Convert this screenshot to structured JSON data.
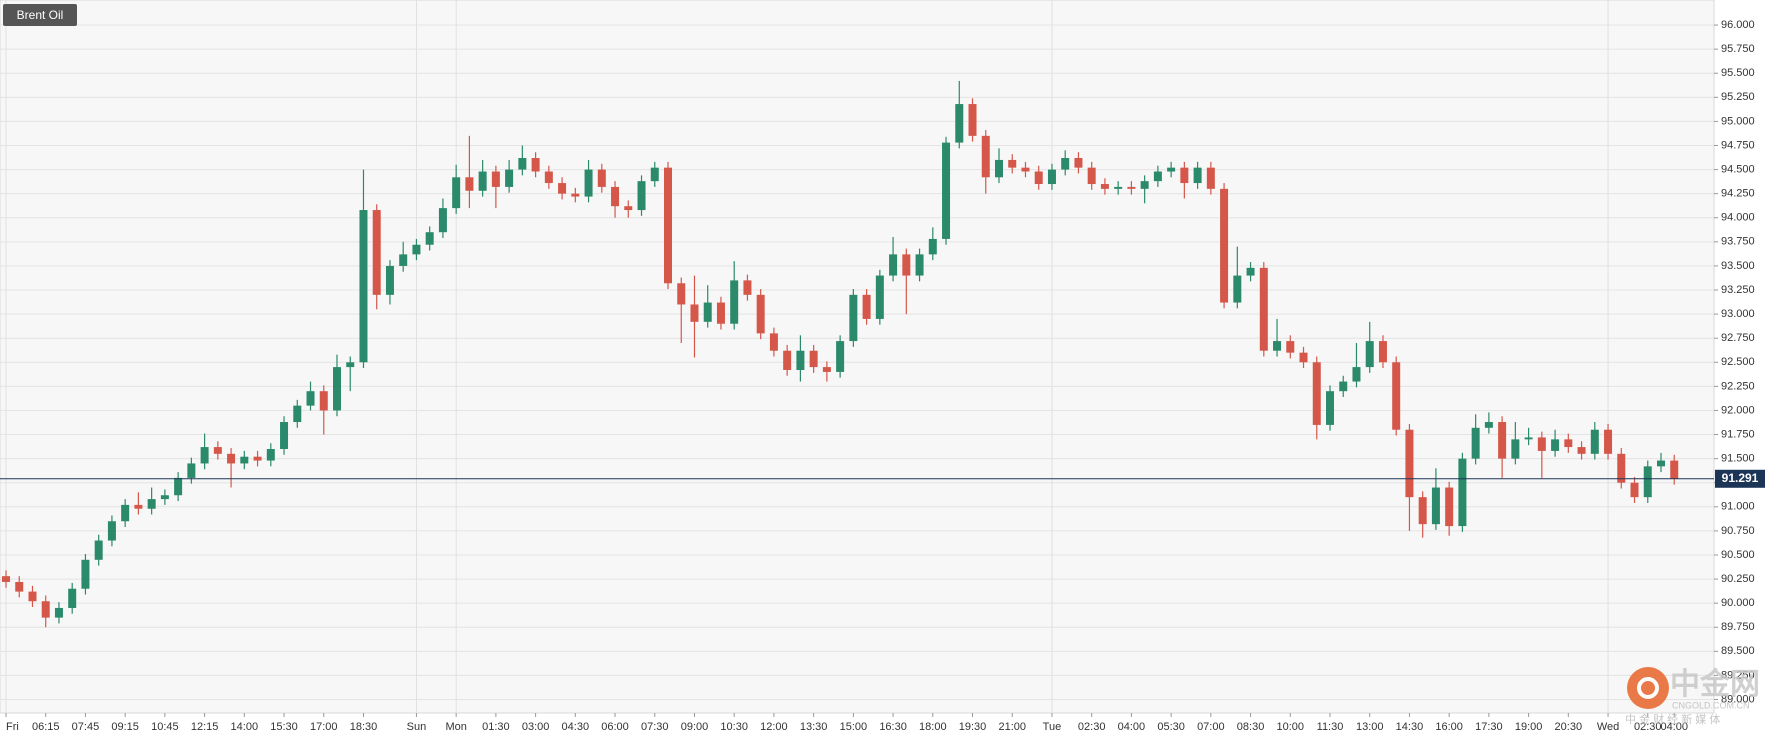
{
  "chart_data": {
    "type": "candlestick",
    "title": "Brent Oil",
    "categories": [
      "Fri",
      null,
      null,
      "06:15",
      null,
      null,
      "07:45",
      null,
      null,
      "09:15",
      null,
      null,
      "10:45",
      null,
      null,
      "12:15",
      null,
      null,
      "14:00",
      null,
      null,
      "15:30",
      null,
      null,
      "17:00",
      null,
      null,
      "18:30",
      null,
      null,
      null,
      "Sun",
      null,
      null,
      "Mon",
      null,
      null,
      "01:30",
      null,
      null,
      "03:00",
      null,
      null,
      "04:30",
      null,
      null,
      "06:00",
      null,
      null,
      "07:30",
      null,
      null,
      "09:00",
      null,
      null,
      "10:30",
      null,
      null,
      "12:00",
      null,
      null,
      "13:30",
      null,
      null,
      "15:00",
      null,
      null,
      "16:30",
      null,
      null,
      "18:00",
      null,
      null,
      "19:30",
      null,
      null,
      "21:00",
      null,
      null,
      "Tue",
      null,
      null,
      "02:30",
      null,
      null,
      "04:00",
      null,
      null,
      "05:30",
      null,
      null,
      "07:00",
      null,
      null,
      "08:30",
      null,
      null,
      "10:00",
      null,
      null,
      "11:30",
      null,
      null,
      "13:00",
      null,
      null,
      "14:30",
      null,
      null,
      "16:00",
      null,
      null,
      "17:30",
      null,
      null,
      "19:00",
      null,
      null,
      "20:30",
      null,
      null,
      "Wed",
      null,
      null,
      "02:30",
      null,
      "04:00"
    ],
    "open": [
      90.28,
      90.22,
      90.12,
      90.02,
      89.85,
      89.95,
      90.15,
      90.45,
      90.65,
      90.85,
      91.02,
      90.98,
      91.08,
      91.12,
      91.3,
      91.45,
      91.62,
      91.55,
      91.45,
      91.52,
      91.48,
      91.6,
      91.88,
      92.05,
      92.2,
      92.0,
      92.45,
      92.5,
      94.08,
      93.2,
      93.5,
      93.62,
      93.72,
      93.85,
      94.1,
      94.42,
      94.28,
      94.48,
      94.32,
      94.5,
      94.62,
      94.48,
      94.36,
      94.25,
      94.22,
      94.5,
      94.32,
      94.12,
      94.08,
      94.38,
      94.52,
      93.32,
      93.1,
      92.92,
      93.12,
      92.9,
      93.35,
      93.2,
      92.8,
      92.62,
      92.42,
      92.62,
      92.45,
      92.4,
      92.72,
      93.2,
      92.95,
      93.4,
      93.62,
      93.4,
      93.62,
      93.78,
      94.78,
      95.18,
      94.85,
      94.42,
      94.6,
      94.52,
      94.48,
      94.35,
      94.5,
      94.62,
      94.52,
      94.35,
      94.3,
      94.32,
      94.3,
      94.38,
      94.48,
      94.52,
      94.36,
      94.52,
      94.3,
      93.12,
      93.4,
      93.48,
      92.62,
      92.72,
      92.6,
      92.5,
      91.85,
      92.2,
      92.3,
      92.45,
      92.72,
      92.5,
      91.8,
      91.1,
      90.82,
      91.2,
      90.8,
      91.5,
      91.82,
      91.88,
      91.5,
      91.7,
      91.72,
      91.58,
      91.7,
      91.62,
      91.55,
      91.8,
      91.55,
      91.25,
      91.1,
      91.42,
      91.48
    ],
    "high": [
      90.34,
      90.28,
      90.18,
      90.08,
      90.01,
      90.21,
      90.51,
      90.71,
      90.91,
      91.08,
      91.15,
      91.2,
      91.18,
      91.36,
      91.51,
      91.76,
      91.68,
      91.61,
      91.58,
      91.58,
      91.66,
      91.94,
      92.11,
      92.3,
      92.26,
      92.58,
      92.56,
      94.5,
      94.14,
      93.56,
      93.75,
      93.78,
      93.91,
      94.2,
      94.55,
      94.85,
      94.6,
      94.54,
      94.6,
      94.75,
      94.68,
      94.54,
      94.42,
      94.31,
      94.6,
      94.56,
      94.38,
      94.18,
      94.44,
      94.58,
      94.58,
      93.38,
      93.4,
      93.3,
      93.18,
      93.55,
      93.41,
      93.26,
      92.86,
      92.68,
      92.78,
      92.68,
      92.51,
      92.78,
      93.26,
      93.26,
      93.46,
      93.8,
      93.68,
      93.68,
      93.9,
      94.84,
      95.42,
      95.24,
      94.91,
      94.72,
      94.66,
      94.58,
      94.54,
      94.56,
      94.7,
      94.68,
      94.58,
      94.41,
      94.38,
      94.38,
      94.44,
      94.54,
      94.58,
      94.58,
      94.58,
      94.58,
      94.36,
      93.7,
      93.54,
      93.54,
      92.95,
      92.78,
      92.66,
      92.56,
      92.26,
      92.36,
      92.7,
      92.92,
      92.78,
      92.56,
      91.86,
      91.16,
      91.4,
      91.26,
      91.56,
      91.96,
      91.98,
      91.94,
      91.88,
      91.82,
      91.78,
      91.8,
      91.76,
      91.68,
      91.88,
      91.86,
      91.61,
      91.31,
      91.48,
      91.56,
      91.54
    ],
    "low": [
      90.16,
      90.06,
      89.96,
      89.75,
      89.79,
      89.89,
      90.09,
      90.39,
      90.59,
      90.79,
      90.92,
      90.92,
      91.02,
      91.06,
      91.24,
      91.39,
      91.49,
      91.2,
      91.39,
      91.42,
      91.42,
      91.54,
      91.82,
      92.0,
      91.75,
      91.94,
      92.2,
      92.44,
      93.05,
      93.1,
      93.44,
      93.56,
      93.66,
      93.79,
      94.04,
      94.1,
      94.22,
      94.1,
      94.26,
      94.44,
      94.42,
      94.3,
      94.19,
      94.16,
      94.16,
      94.26,
      94.0,
      94.0,
      94.02,
      94.32,
      93.26,
      92.7,
      92.55,
      92.86,
      92.84,
      92.84,
      93.14,
      92.74,
      92.56,
      92.36,
      92.3,
      92.39,
      92.3,
      92.34,
      92.66,
      92.89,
      92.89,
      93.34,
      93.0,
      93.34,
      93.56,
      93.72,
      94.72,
      94.79,
      94.25,
      94.36,
      94.46,
      94.42,
      94.29,
      94.29,
      94.44,
      94.46,
      94.29,
      94.24,
      94.24,
      94.24,
      94.15,
      94.32,
      94.42,
      94.2,
      94.3,
      94.24,
      93.06,
      93.06,
      93.34,
      92.56,
      92.56,
      92.54,
      92.44,
      91.7,
      91.79,
      92.14,
      92.24,
      92.39,
      92.44,
      91.74,
      90.75,
      90.68,
      90.76,
      90.7,
      90.74,
      91.44,
      91.76,
      91.3,
      91.44,
      91.64,
      91.3,
      91.52,
      91.56,
      91.49,
      91.49,
      91.49,
      91.19,
      91.04,
      91.04,
      91.36,
      91.23
    ],
    "close": [
      90.22,
      90.12,
      90.02,
      89.85,
      89.95,
      90.15,
      90.45,
      90.65,
      90.85,
      91.02,
      90.98,
      91.08,
      91.12,
      91.3,
      91.45,
      91.62,
      91.55,
      91.45,
      91.52,
      91.48,
      91.6,
      91.88,
      92.05,
      92.2,
      92.0,
      92.45,
      92.5,
      94.08,
      93.2,
      93.5,
      93.62,
      93.72,
      93.85,
      94.1,
      94.42,
      94.28,
      94.48,
      94.32,
      94.5,
      94.62,
      94.48,
      94.36,
      94.25,
      94.22,
      94.5,
      94.32,
      94.12,
      94.08,
      94.38,
      94.52,
      93.32,
      93.1,
      92.92,
      93.12,
      92.9,
      93.35,
      93.2,
      92.8,
      92.62,
      92.42,
      92.62,
      92.45,
      92.4,
      92.72,
      93.2,
      92.95,
      93.4,
      93.62,
      93.4,
      93.62,
      93.78,
      94.78,
      95.18,
      94.85,
      94.42,
      94.6,
      94.52,
      94.48,
      94.35,
      94.5,
      94.62,
      94.52,
      94.35,
      94.3,
      94.32,
      94.3,
      94.38,
      94.48,
      94.52,
      94.36,
      94.52,
      94.3,
      93.12,
      93.4,
      93.48,
      92.62,
      92.72,
      92.6,
      92.5,
      91.85,
      92.2,
      92.3,
      92.45,
      92.72,
      92.5,
      91.8,
      91.1,
      90.82,
      91.2,
      90.8,
      91.5,
      91.82,
      91.88,
      91.5,
      91.7,
      91.72,
      91.58,
      91.7,
      91.62,
      91.55,
      91.8,
      91.55,
      91.25,
      91.1,
      91.42,
      91.48,
      91.29
    ],
    "up_color": "#2b8a6b",
    "down_color": "#d4574a",
    "last_price": 91.291,
    "last_price_color": "#1c3557",
    "ylim": [
      88.86,
      96.26
    ],
    "yticks": [
      {
        "value": 89,
        "label": "89.000"
      },
      {
        "value": 89.25,
        "label": "89.250"
      },
      {
        "value": 89.5,
        "label": "89.500"
      },
      {
        "value": 89.75,
        "label": "89.750"
      },
      {
        "value": 90,
        "label": "90.000"
      },
      {
        "value": 90.25,
        "label": "90.250"
      },
      {
        "value": 90.5,
        "label": "90.500"
      },
      {
        "value": 90.75,
        "label": "90.750"
      },
      {
        "value": 91,
        "label": "91.000"
      },
      {
        "value": 91.25,
        "label": "91.250"
      },
      {
        "value": 91.5,
        "label": "91.500"
      },
      {
        "value": 91.75,
        "label": "91.750"
      },
      {
        "value": 92,
        "label": "92.000"
      },
      {
        "value": 92.25,
        "label": "92.250"
      },
      {
        "value": 92.5,
        "label": "92.500"
      },
      {
        "value": 92.75,
        "label": "92.750"
      },
      {
        "value": 93,
        "label": "93.000"
      },
      {
        "value": 93.25,
        "label": "93.250"
      },
      {
        "value": 93.5,
        "label": "93.500"
      },
      {
        "value": 93.75,
        "label": "93.750"
      },
      {
        "value": 94,
        "label": "94.000"
      },
      {
        "value": 94.25,
        "label": "94.250"
      },
      {
        "value": 94.5,
        "label": "94.500"
      },
      {
        "value": 94.75,
        "label": "94.750"
      },
      {
        "value": 95,
        "label": "95.000"
      },
      {
        "value": 95.25,
        "label": "95.250"
      },
      {
        "value": 95.5,
        "label": "95.500"
      },
      {
        "value": 95.75,
        "label": "95.750"
      },
      {
        "value": 96,
        "label": "96.000"
      }
    ],
    "grid": true
  },
  "watermark": {
    "brand": "中金网",
    "domain": "CNGOLD.COM.CN",
    "slogan": "中 金 财 经 新 媒 体"
  }
}
